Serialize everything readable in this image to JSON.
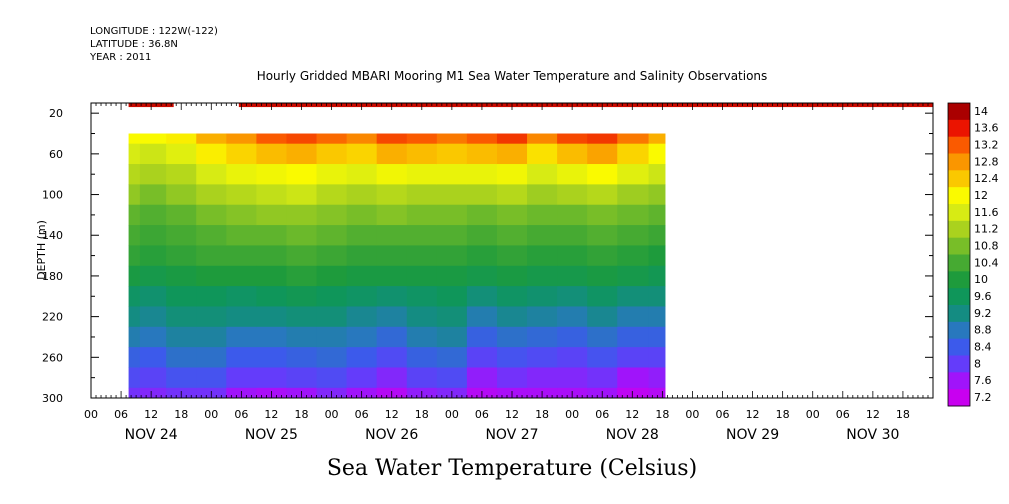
{
  "header": {
    "longitude": "LONGITUDE : 122W(-122)",
    "latitude": "LATITUDE : 36.8N",
    "year": "YEAR : 2011"
  },
  "chart_data": {
    "type": "heatmap",
    "title": "Hourly Gridded MBARI Mooring M1 Sea Water Temperature and Salinity Observations",
    "bottom_title": "Sea Water Temperature (Celsius)",
    "ylabel": "DEPTH (m)",
    "ylim": [
      300,
      10
    ],
    "y_reversed": true,
    "y_ticks": [
      20,
      60,
      100,
      140,
      180,
      220,
      260,
      300
    ],
    "x_range_hours": [
      0,
      168
    ],
    "x_hour_tick_labels": [
      "00",
      "06",
      "12",
      "18",
      "00",
      "06",
      "12",
      "18",
      "00",
      "06",
      "12",
      "18",
      "00",
      "06",
      "12",
      "18",
      "00",
      "06",
      "12",
      "18",
      "00",
      "06",
      "12",
      "18",
      "00",
      "06",
      "12",
      "18"
    ],
    "x_day_labels": [
      "NOV 24",
      "NOV 25",
      "NOV 26",
      "NOV 27",
      "NOV 28",
      "NOV 29",
      "NOV 30"
    ],
    "colorbar_levels": [
      14,
      13.6,
      13.2,
      12.8,
      12.4,
      12,
      11.6,
      11.2,
      10.8,
      10.4,
      10,
      9.6,
      9.2,
      8.8,
      8.4,
      8,
      7.6,
      7.2
    ],
    "surface_band": {
      "depth_range": [
        10,
        14
      ],
      "segments": [
        [
          7.5,
          16.5
        ],
        [
          29.5,
          168
        ]
      ],
      "value": 13.8
    },
    "data_extent": {
      "time_hours": [
        7.5,
        114.5
      ],
      "depth_range": [
        40,
        300
      ]
    },
    "profile_depths": [
      40,
      60,
      80,
      100,
      120,
      140,
      160,
      180,
      200,
      220,
      240,
      260,
      280,
      300
    ],
    "profile_times": [
      7.5,
      12,
      18,
      24,
      30,
      36,
      42,
      48,
      54,
      60,
      66,
      72,
      78,
      84,
      90,
      96,
      102,
      108,
      114.5
    ],
    "temperature": [
      [
        12.0,
        11.6,
        11.3,
        11.0,
        10.6,
        10.4,
        10.2,
        9.9,
        9.5,
        9.2,
        8.9,
        8.5,
        8.2,
        7.9
      ],
      [
        12.0,
        11.5,
        11.2,
        10.8,
        10.5,
        10.3,
        10.1,
        9.8,
        9.4,
        9.1,
        8.8,
        8.4,
        8.1,
        7.8
      ],
      [
        12.1,
        11.7,
        11.3,
        11.0,
        10.6,
        10.4,
        10.2,
        9.9,
        9.6,
        9.3,
        9.0,
        8.7,
        8.3,
        7.9
      ],
      [
        12.6,
        12.1,
        11.6,
        11.2,
        10.8,
        10.5,
        10.3,
        10.0,
        9.6,
        9.3,
        9.0,
        8.7,
        8.3,
        7.9
      ],
      [
        12.8,
        12.3,
        11.8,
        11.3,
        10.9,
        10.6,
        10.3,
        10.0,
        9.5,
        9.2,
        8.8,
        8.4,
        8.0,
        7.6
      ],
      [
        13.2,
        12.5,
        11.9,
        11.4,
        11.0,
        10.6,
        10.3,
        10.0,
        9.6,
        9.2,
        8.8,
        8.4,
        8.0,
        7.5
      ],
      [
        13.3,
        12.6,
        12.0,
        11.5,
        11.0,
        10.7,
        10.4,
        10.1,
        9.7,
        9.3,
        8.9,
        8.5,
        8.1,
        7.6
      ],
      [
        13.1,
        12.4,
        11.8,
        11.3,
        10.9,
        10.6,
        10.3,
        10.0,
        9.6,
        9.3,
        8.9,
        8.6,
        8.2,
        7.8
      ],
      [
        12.9,
        12.3,
        11.7,
        11.2,
        10.8,
        10.5,
        10.2,
        9.9,
        9.5,
        9.1,
        8.8,
        8.4,
        8.0,
        7.6
      ],
      [
        13.3,
        12.6,
        11.9,
        11.3,
        10.9,
        10.5,
        10.2,
        9.9,
        9.4,
        9.0,
        8.6,
        8.2,
        7.8,
        7.4
      ],
      [
        13.2,
        12.5,
        11.8,
        11.2,
        10.8,
        10.5,
        10.2,
        9.9,
        9.5,
        9.2,
        8.9,
        8.5,
        8.1,
        7.7
      ],
      [
        13.0,
        12.4,
        11.8,
        11.2,
        10.8,
        10.5,
        10.2,
        9.9,
        9.6,
        9.3,
        9.0,
        8.6,
        8.2,
        7.8
      ],
      [
        13.2,
        12.5,
        11.8,
        11.2,
        10.7,
        10.4,
        10.1,
        9.8,
        9.3,
        8.9,
        8.5,
        8.1,
        7.7,
        7.4
      ],
      [
        13.4,
        12.6,
        11.9,
        11.3,
        10.8,
        10.5,
        10.2,
        9.9,
        9.5,
        9.1,
        8.7,
        8.3,
        7.9,
        7.5
      ],
      [
        12.9,
        12.2,
        11.6,
        11.1,
        10.7,
        10.4,
        10.1,
        9.8,
        9.4,
        9.0,
        8.6,
        8.2,
        7.8,
        7.5
      ],
      [
        13.3,
        12.5,
        11.8,
        11.2,
        10.7,
        10.4,
        10.1,
        9.8,
        9.3,
        8.9,
        8.5,
        8.1,
        7.8,
        7.5
      ],
      [
        13.4,
        12.7,
        12.0,
        11.3,
        10.8,
        10.5,
        10.2,
        9.9,
        9.5,
        9.1,
        8.7,
        8.3,
        7.9,
        7.6
      ],
      [
        13.0,
        12.3,
        11.7,
        11.1,
        10.7,
        10.4,
        10.1,
        9.8,
        9.3,
        8.9,
        8.5,
        8.1,
        7.6,
        7.3
      ],
      [
        12.6,
        12.0,
        11.5,
        11.0,
        10.6,
        10.3,
        10.0,
        9.7,
        9.3,
        8.9,
        8.5,
        8.1,
        7.7,
        7.4
      ]
    ]
  }
}
